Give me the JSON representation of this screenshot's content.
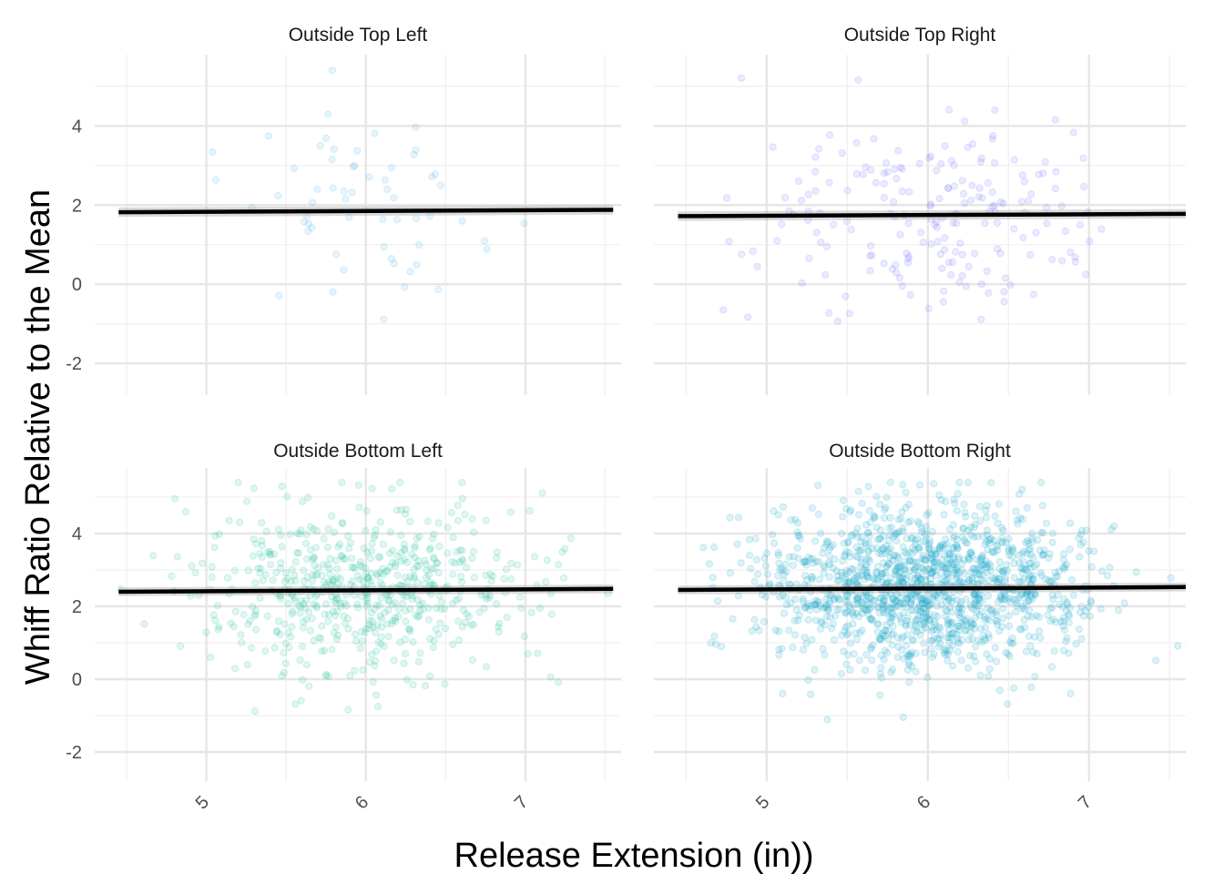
{
  "chart_data": {
    "type": "scatter",
    "xlabel": "Release Extension (in))",
    "ylabel": "Whiff Ratio Relative to the Mean",
    "x_ticks": [
      5,
      6,
      7
    ],
    "y_ticks": [
      -2,
      0,
      2,
      4
    ],
    "grid": true,
    "point_opacity": 0.15,
    "panels": [
      {
        "title": "Outside Top Left",
        "color": "#56B4E9",
        "xlim": [
          4.3,
          7.6
        ],
        "ylim": [
          -2.8,
          5.8
        ],
        "fit": {
          "x": [
            4.45,
            7.55
          ],
          "y": [
            1.82,
            1.88
          ]
        },
        "points_summary": {
          "n": 60,
          "x_mean": 6.0,
          "x_sd": 0.38,
          "y_mean": 1.85,
          "y_sd": 1.25
        }
      },
      {
        "title": "Outside Top Right",
        "color": "#7B7BFF",
        "xlim": [
          4.3,
          7.6
        ],
        "ylim": [
          -2.8,
          5.8
        ],
        "fit": {
          "x": [
            4.45,
            7.6
          ],
          "y": [
            1.72,
            1.78
          ]
        },
        "points_summary": {
          "n": 200,
          "x_mean": 6.0,
          "x_sd": 0.5,
          "y_mean": 1.75,
          "y_sd": 1.2
        }
      },
      {
        "title": "Outside Bottom Left",
        "color": "#2CC4A0",
        "xlim": [
          4.3,
          7.6
        ],
        "ylim": [
          -2.8,
          5.8
        ],
        "fit": {
          "x": [
            4.45,
            7.55
          ],
          "y": [
            2.4,
            2.48
          ]
        },
        "points_summary": {
          "n": 600,
          "x_mean": 6.0,
          "x_sd": 0.5,
          "y_mean": 2.45,
          "y_sd": 1.15
        }
      },
      {
        "title": "Outside Bottom Right",
        "color": "#1BA9CC",
        "xlim": [
          4.3,
          7.6
        ],
        "ylim": [
          -2.8,
          5.8
        ],
        "fit": {
          "x": [
            4.45,
            7.6
          ],
          "y": [
            2.45,
            2.53
          ]
        },
        "points_summary": {
          "n": 1400,
          "x_mean": 6.0,
          "x_sd": 0.5,
          "y_mean": 2.5,
          "y_sd": 1.1
        }
      }
    ]
  }
}
